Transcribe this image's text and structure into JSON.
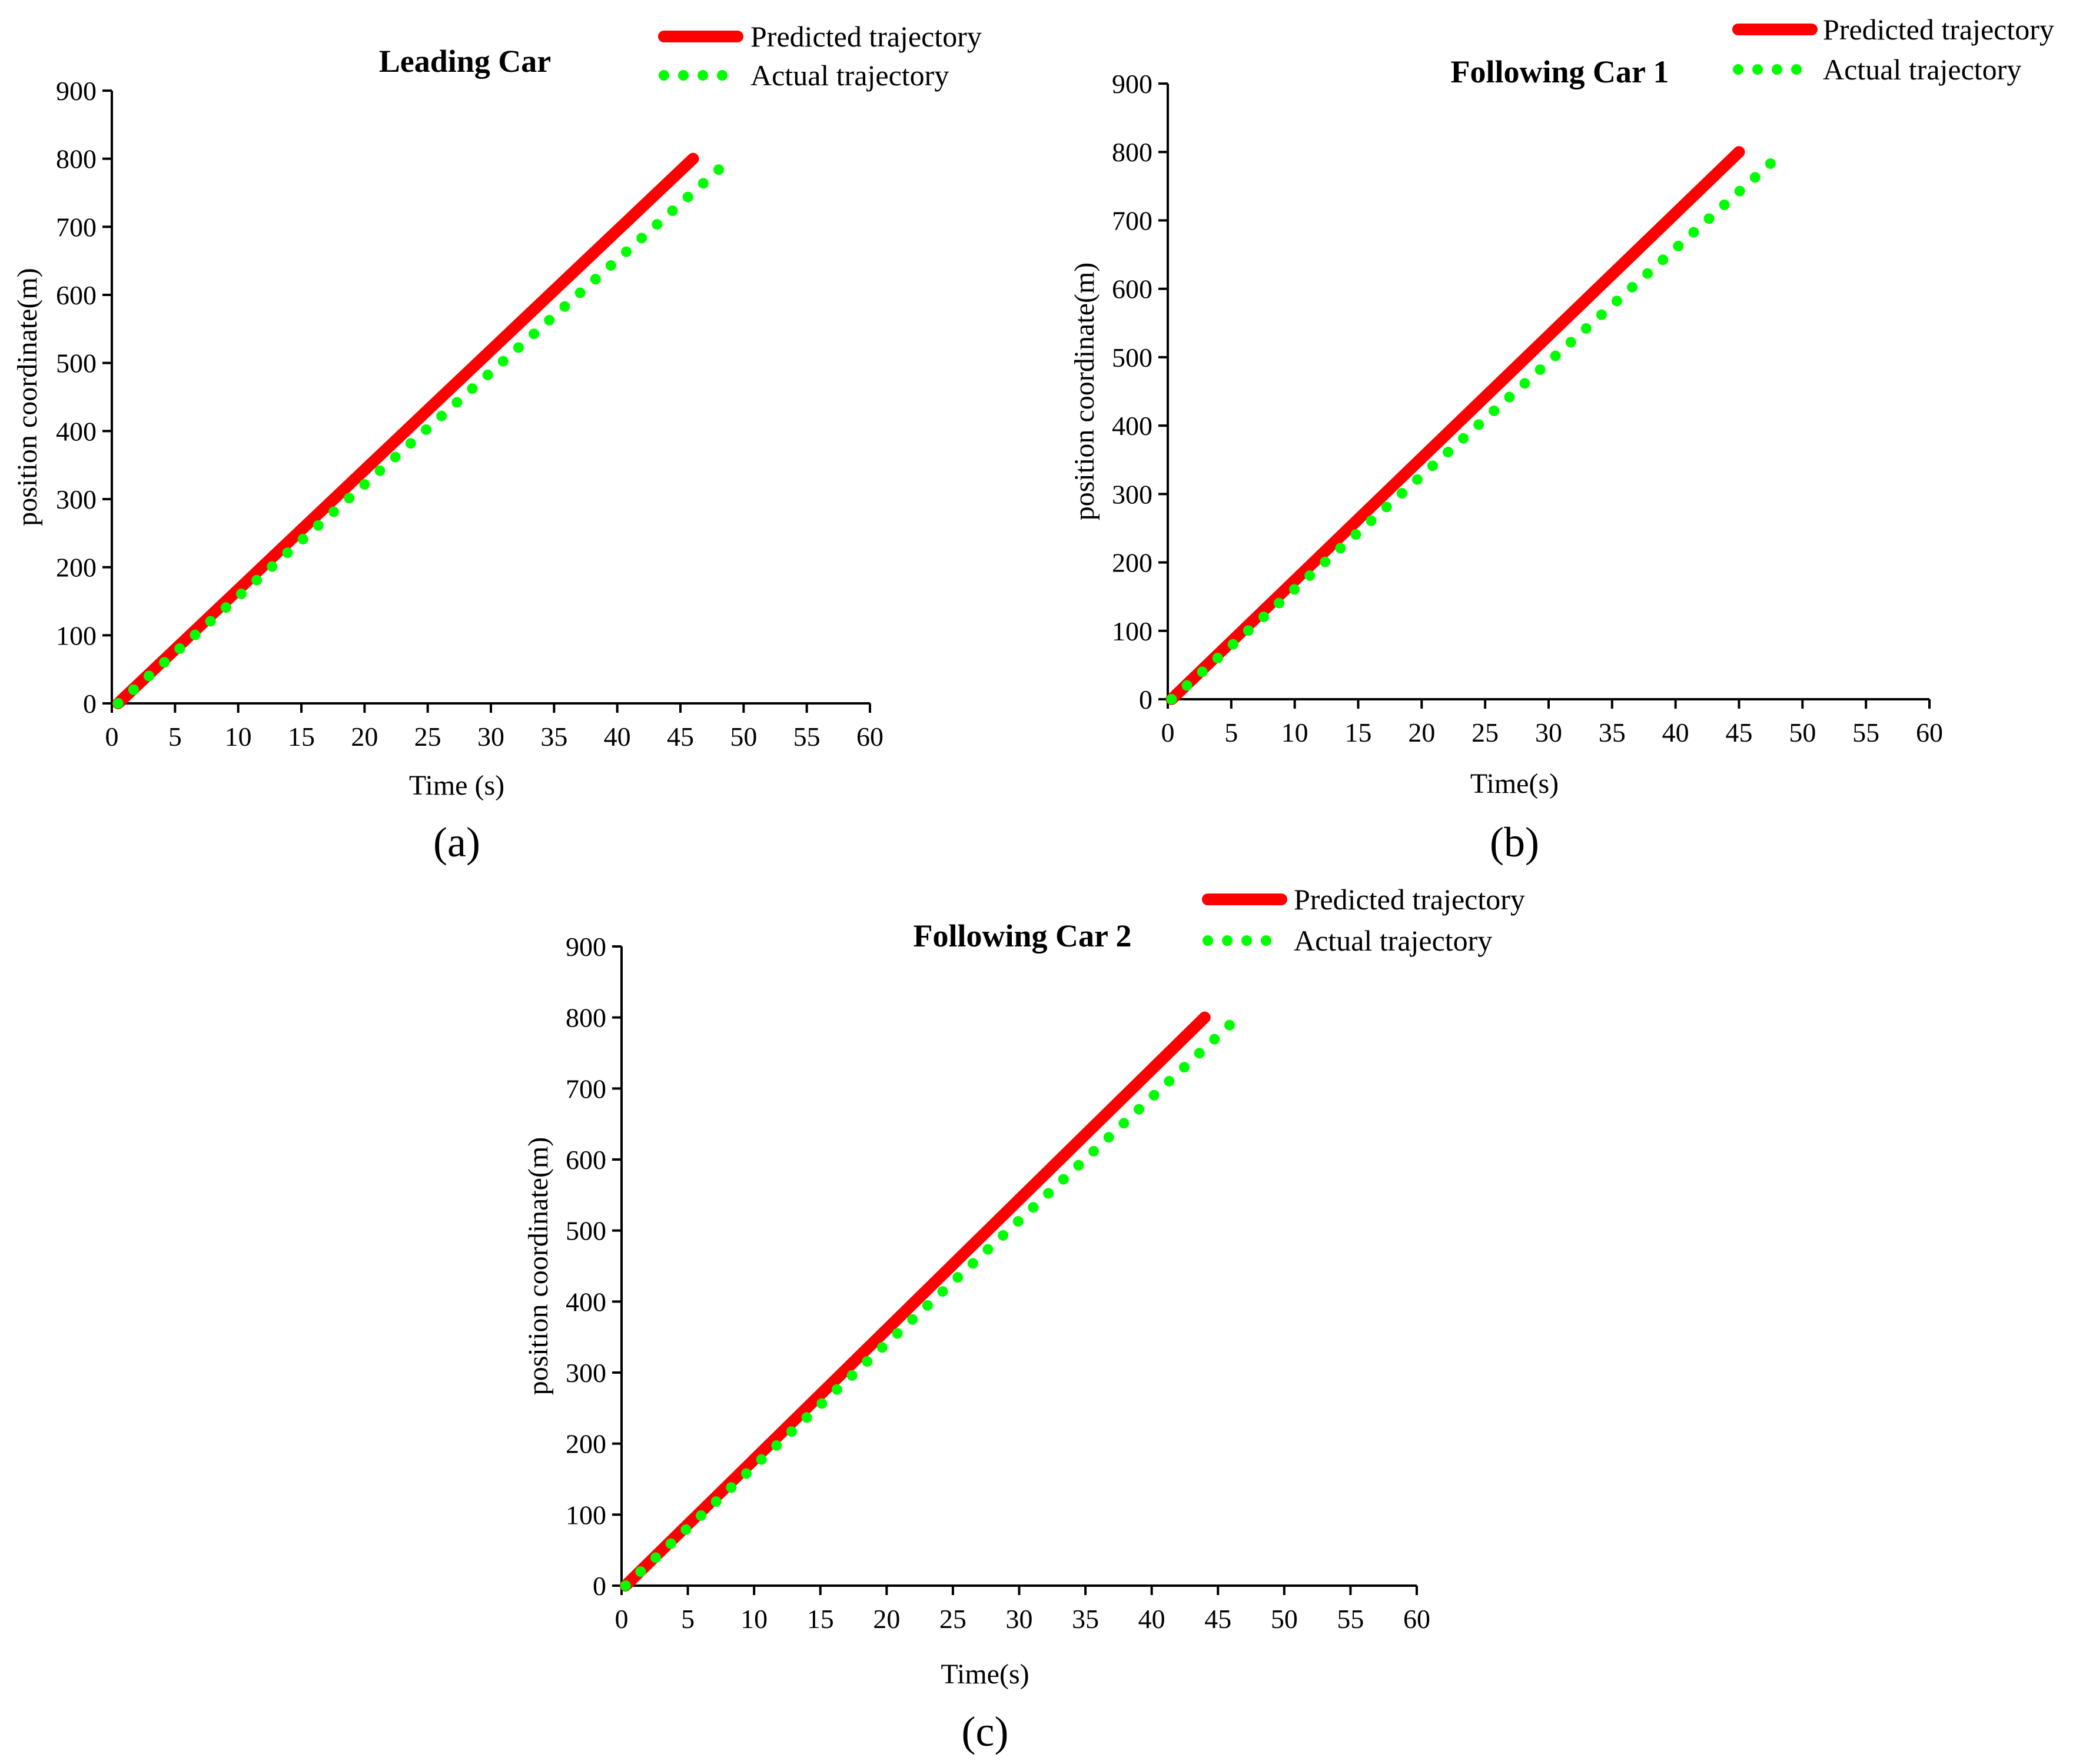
{
  "colors": {
    "predicted": "#ff0000",
    "actual": "#00ff00",
    "axis": "#000000"
  },
  "chart_data": [
    {
      "type": "line",
      "panel": "a",
      "panel_label": "(a)",
      "title": "Leading Car",
      "xlabel": "Time (s)",
      "ylabel": "position coordinate(m)",
      "xlim": [
        0,
        60
      ],
      "ylim": [
        0,
        900
      ],
      "xticks": [
        "0",
        "5",
        "10",
        "15",
        "20",
        "25",
        "30",
        "35",
        "40",
        "45",
        "50",
        "55",
        "60"
      ],
      "yticks": [
        "0",
        "100",
        "200",
        "300",
        "400",
        "500",
        "600",
        "700",
        "800",
        "900"
      ],
      "series": [
        {
          "name": "Predicted trajectory",
          "style": "solid",
          "x": [
            0.5,
            46
          ],
          "y": [
            0,
            800
          ]
        },
        {
          "name": "Actual trajectory",
          "style": "dotted",
          "x": [
            0.5,
            49
          ],
          "y": [
            0,
            800
          ]
        }
      ]
    },
    {
      "type": "line",
      "panel": "b",
      "panel_label": "(b)",
      "title": "Following Car 1",
      "xlabel": "Time(s)",
      "ylabel": "position coordinate(m)",
      "xlim": [
        0,
        60
      ],
      "ylim": [
        0,
        900
      ],
      "xticks": [
        "0",
        "5",
        "10",
        "15",
        "20",
        "25",
        "30",
        "35",
        "40",
        "45",
        "50",
        "55",
        "60"
      ],
      "yticks": [
        "0",
        "100",
        "200",
        "300",
        "400",
        "500",
        "600",
        "700",
        "800",
        "900"
      ],
      "series": [
        {
          "name": "Predicted trajectory",
          "style": "solid",
          "x": [
            0.3,
            45
          ],
          "y": [
            0,
            800
          ]
        },
        {
          "name": "Actual trajectory",
          "style": "dotted",
          "x": [
            0.3,
            48.5
          ],
          "y": [
            0,
            800
          ]
        }
      ]
    },
    {
      "type": "line",
      "panel": "c",
      "panel_label": "(c)",
      "title": "Following Car 2",
      "xlabel": "Time(s)",
      "ylabel": "position coordinate(m)",
      "xlim": [
        0,
        60
      ],
      "ylim": [
        0,
        900
      ],
      "xticks": [
        "0",
        "5",
        "10",
        "15",
        "20",
        "25",
        "30",
        "35",
        "40",
        "45",
        "50",
        "55",
        "60"
      ],
      "yticks": [
        "0",
        "100",
        "200",
        "300",
        "400",
        "500",
        "600",
        "700",
        "800",
        "900"
      ],
      "series": [
        {
          "name": "Predicted trajectory",
          "style": "solid",
          "x": [
            0.3,
            44
          ],
          "y": [
            0,
            800
          ]
        },
        {
          "name": "Actual trajectory",
          "style": "dotted",
          "x": [
            0.3,
            46.5
          ],
          "y": [
            0,
            800
          ]
        }
      ]
    }
  ]
}
